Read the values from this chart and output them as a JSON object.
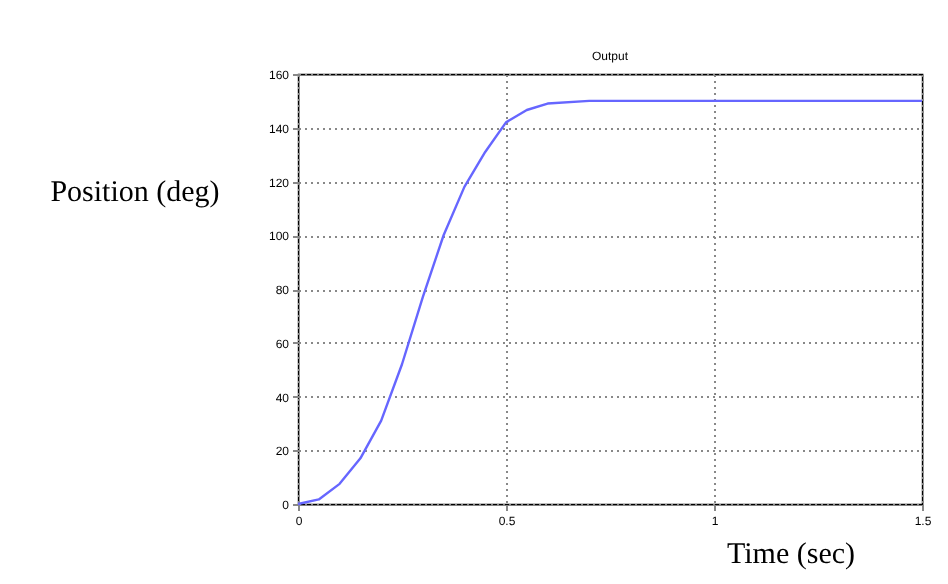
{
  "chart_data": {
    "type": "line",
    "title": "Output",
    "xlabel": "Time (sec)",
    "ylabel": "Position (deg)",
    "x": [
      0,
      0.05,
      0.1,
      0.15,
      0.2,
      0.25,
      0.3,
      0.35,
      0.4,
      0.45,
      0.5,
      0.55,
      0.6,
      0.7,
      0.8,
      1,
      1.2,
      1.5
    ],
    "series": [
      {
        "color": "#6666ff",
        "values": [
          0,
          1.7,
          7.5,
          17,
          31,
          52,
          77,
          100,
          118,
          131,
          142,
          146.6,
          149,
          150,
          150,
          150,
          150,
          150
        ]
      }
    ],
    "xlim": [
      0,
      1.5
    ],
    "xticks": [
      0,
      0.5,
      1,
      1.5
    ],
    "ylim": [
      0,
      160
    ],
    "yticks": [
      0,
      20,
      40,
      60,
      80,
      100,
      120,
      140,
      160
    ],
    "grid": true,
    "line_style": "solid",
    "legend": false
  }
}
